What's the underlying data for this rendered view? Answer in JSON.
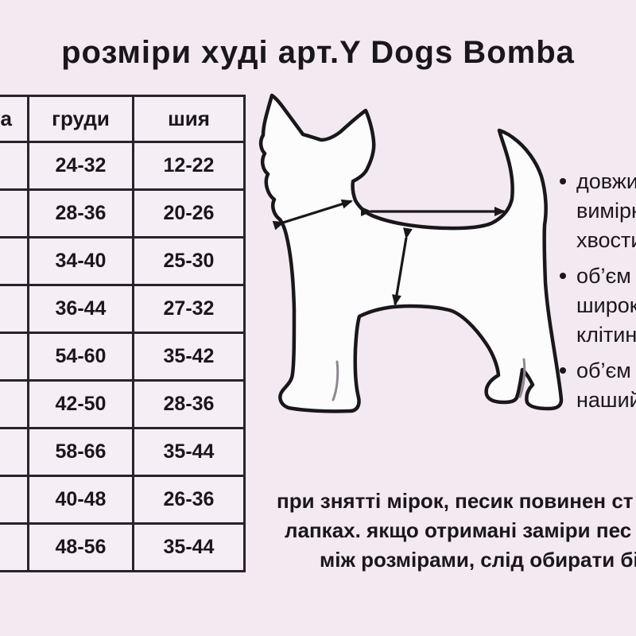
{
  "title": "розміри худі арт.Y Dogs Bomba",
  "colors": {
    "background": "#f2e9f1",
    "table_cell": "#f6eef5",
    "ink": "#1a171a",
    "table_border": "#28232b",
    "dog_fill": "#fdfcfd",
    "toe_line_gray": "#8e8890"
  },
  "size_table": {
    "columns": [
      {
        "id": "size",
        "label": "а"
      },
      {
        "id": "chest",
        "label": "груди"
      },
      {
        "id": "neck",
        "label": "шия"
      }
    ],
    "rows": [
      [
        "",
        "24-32",
        "12-22"
      ],
      [
        "",
        "28-36",
        "20-26"
      ],
      [
        "",
        "34-40",
        "25-30"
      ],
      [
        "",
        "36-44",
        "27-32"
      ],
      [
        "",
        "54-60",
        "35-42"
      ],
      [
        "",
        "42-50",
        "28-36"
      ],
      [
        "",
        "58-66",
        "35-44"
      ],
      [
        "",
        "40-48",
        "26-36"
      ],
      [
        "",
        "48-56",
        "35-44"
      ]
    ]
  },
  "dog_diagram": {
    "figure": "chihuahua-outline",
    "arrows": [
      "back-length-arrow",
      "neck-girth-arrow",
      "chest-girth-arrow"
    ]
  },
  "notes": [
    {
      "lines": [
        "довжин",
        "вимірю",
        "хвости"
      ]
    },
    {
      "lines": [
        "об’єм",
        "широк",
        "клітини"
      ]
    },
    {
      "lines": [
        "об’єм",
        "нашийн"
      ]
    }
  ],
  "footnote": {
    "lines": [
      "при знятті мірок, песик повинен ст",
      "лапках. якщо отримані заміри пес",
      "між розмірами, слід обирати бі"
    ]
  }
}
